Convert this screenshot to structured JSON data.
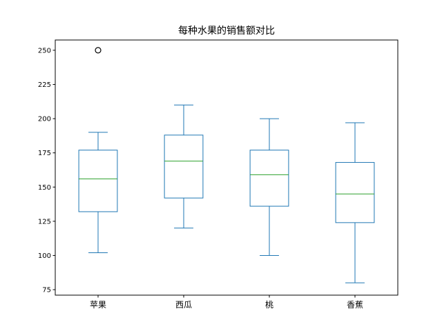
{
  "chart_data": {
    "type": "box",
    "title": "每种水果的销售额对比",
    "xlabel": "",
    "ylabel": "",
    "categories": [
      "苹果",
      "西瓜",
      "桃",
      "香蕉"
    ],
    "boxes": [
      {
        "name": "苹果",
        "whisker_low": 102,
        "q1": 132,
        "median": 156,
        "q3": 177,
        "whisker_high": 190,
        "outliers": [
          250
        ]
      },
      {
        "name": "西瓜",
        "whisker_low": 120,
        "q1": 142,
        "median": 169,
        "q3": 188,
        "whisker_high": 210,
        "outliers": []
      },
      {
        "name": "桃",
        "whisker_low": 100,
        "q1": 136,
        "median": 159,
        "q3": 177,
        "whisker_high": 200,
        "outliers": []
      },
      {
        "name": "香蕉",
        "whisker_low": 80,
        "q1": 124,
        "median": 145,
        "q3": 168,
        "whisker_high": 197,
        "outliers": []
      }
    ],
    "yticks": [
      75,
      100,
      125,
      150,
      175,
      200,
      225,
      250
    ],
    "ylim": [
      71,
      257.5
    ],
    "grid": false,
    "colors": {
      "box": "#1f77b4",
      "median": "#2ca02c",
      "outlier": "#000000"
    }
  }
}
